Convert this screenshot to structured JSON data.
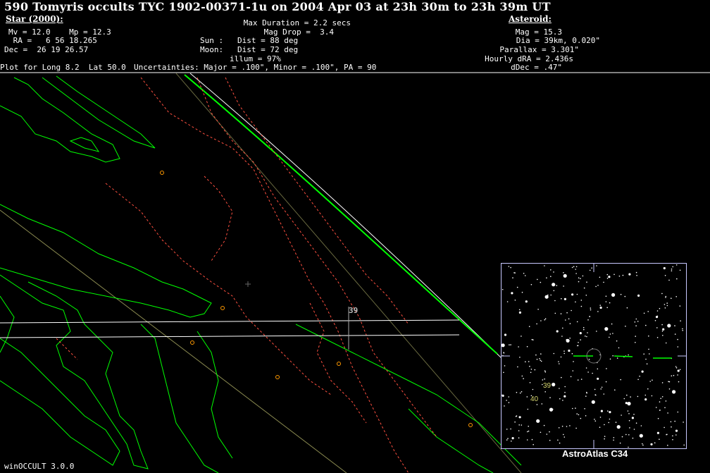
{
  "title": "590 Tomyris occults TYC 1902-00371-1u on 2004 Apr 03 at 23h 30m to 23h 39m UT",
  "star": {
    "heading": "Star (2000):",
    "mags": "Mv = 12.0    Mp = 12.3",
    "ra": " RA =   6 56 18.265",
    "dec": "Dec =  26 19 26.57"
  },
  "event": {
    "max_duration": "Max Duration = 2.2 secs",
    "mag_drop": "Mag Drop =  3.4",
    "sun": "Sun :   Dist = 88 deg",
    "moon": "Moon:   Dist = 72 deg",
    "illum": "illum = 97%"
  },
  "asteroid": {
    "heading": "Asteroid:",
    "mag": "Mag = 15.3",
    "dia": "Dia = 39km, 0.020\"",
    "parallax": "Parallax = 3.301\"",
    "hourly_dra": "Hourly dRA = 2.436s",
    "ddec": "dDec = .47\""
  },
  "plot_for": "Plot for Long 8.2  Lat 50.0",
  "uncertainties": "Uncertainties: Major = .100\", Minor = .100\", PA = 90",
  "map": {
    "time_label": "39",
    "colors": {
      "coast": "#00ff00",
      "border": "#ff5040",
      "path": "#ffffff",
      "site": "#ff9900",
      "track": "#8a8a50"
    }
  },
  "inset": {
    "caption": "AstroAtlas C34",
    "labels": [
      "39",
      "40"
    ],
    "label_color": "#d8d870",
    "frame_color": "#c8c8ff"
  },
  "footer": "winOCCULT 3.0.0"
}
